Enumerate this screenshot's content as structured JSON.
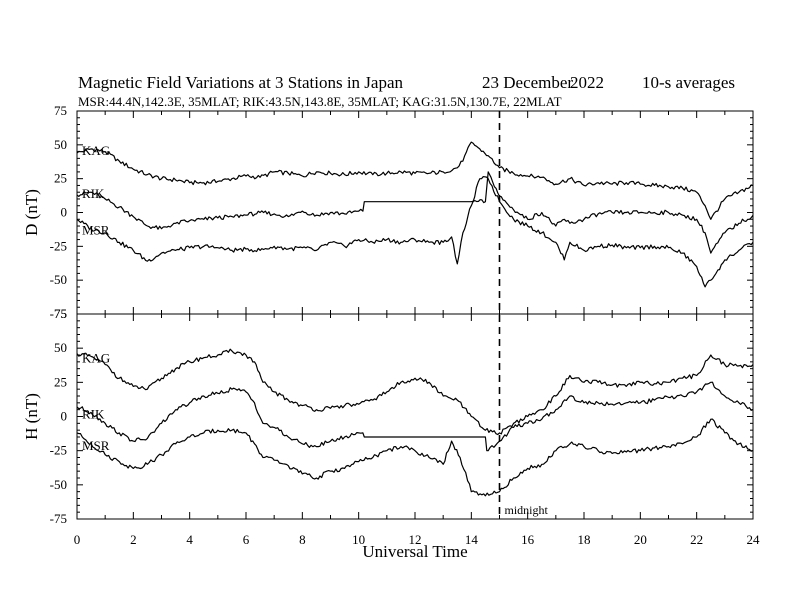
{
  "header": {
    "title_left": "Magnetic Field Variations at 3 Stations in Japan",
    "title_date": "23 December",
    "title_year": "2022",
    "title_right": "10-s averages",
    "subtitle": "MSR:44.4N,142.3E, 35MLAT;  RIK:43.5N,143.8E, 35MLAT;  KAG:31.5N,130.7E, 22MLAT"
  },
  "annotation": {
    "midnight_label": "midnight",
    "midnight_x": 15
  },
  "chart_data": [
    {
      "type": "line",
      "panel": "D",
      "ylabel": "D (nT)",
      "xlabel": "",
      "xlim": [
        0,
        24
      ],
      "ylim": [
        -75,
        75
      ],
      "yticks": [
        -75,
        -50,
        -25,
        0,
        25,
        50,
        75
      ],
      "series": [
        {
          "name": "KAG",
          "x": [
            0,
            0.5,
            1,
            1.5,
            2,
            2.5,
            3,
            3.5,
            4,
            4.5,
            5,
            5.5,
            6,
            6.5,
            7,
            7.5,
            8,
            8.5,
            9,
            9.5,
            10,
            10.5,
            11,
            11.5,
            12,
            12.5,
            13,
            13.5,
            13.7,
            14,
            14.3,
            14.6,
            15,
            15.5,
            16,
            16.5,
            17,
            17.5,
            18,
            18.5,
            19,
            19.5,
            20,
            20.5,
            21,
            21.5,
            22,
            22.3,
            22.5,
            23,
            23.5,
            24
          ],
          "y": [
            44,
            47,
            45,
            38,
            32,
            28,
            25,
            24,
            22,
            22,
            23,
            25,
            27,
            26,
            30,
            29,
            27,
            30,
            29,
            28,
            30,
            28,
            29,
            30,
            29,
            29,
            30,
            33,
            38,
            52,
            47,
            42,
            33,
            29,
            27,
            26,
            21,
            25,
            20,
            22,
            21,
            22,
            21,
            20,
            19,
            18,
            15,
            5,
            -5,
            10,
            15,
            20
          ]
        },
        {
          "name": "RIK",
          "x": [
            0,
            0.5,
            1,
            1.5,
            2,
            2.5,
            3,
            3.5,
            4,
            4.5,
            5,
            5.5,
            6,
            6.5,
            7,
            7.5,
            8,
            8.5,
            9,
            9.5,
            10,
            10.15,
            10.2,
            12,
            14,
            14.5,
            14.6,
            14.7,
            15,
            15.5,
            16,
            16.5,
            17,
            17.3,
            17.5,
            18,
            18.5,
            19,
            19.5,
            20,
            20.5,
            21,
            21.5,
            22,
            22.3,
            22.5,
            23,
            23.5,
            24
          ],
          "y": [
            13,
            15,
            10,
            4,
            -3,
            -10,
            -12,
            -8,
            -6,
            -5,
            -4,
            -3,
            -2,
            0,
            -1,
            -3,
            1,
            -2,
            0,
            -1,
            1,
            1,
            8,
            8,
            8,
            8,
            30,
            26,
            12,
            2,
            -5,
            0,
            -10,
            -5,
            -8,
            -5,
            -1,
            0,
            0,
            0,
            0,
            0,
            -2,
            -5,
            -15,
            -30,
            -15,
            -8,
            -2
          ]
        },
        {
          "name": "MSR",
          "x": [
            0,
            0.5,
            1,
            1.5,
            2,
            2.5,
            3,
            3.5,
            4,
            4.5,
            5,
            5.5,
            6,
            6.5,
            7,
            7.5,
            8,
            8.5,
            9,
            9.5,
            10,
            10.5,
            11,
            11.5,
            12,
            12.5,
            13,
            13.3,
            13.5,
            13.7,
            14,
            14.3,
            14.6,
            15,
            15.5,
            16,
            16.5,
            17,
            17.3,
            17.5,
            18,
            18.5,
            19,
            19.5,
            20,
            20.5,
            21,
            21.5,
            22,
            22.3,
            22.5,
            23,
            23.5,
            24
          ],
          "y": [
            -5,
            -12,
            -15,
            -22,
            -28,
            -36,
            -30,
            -28,
            -26,
            -25,
            -26,
            -28,
            -27,
            -28,
            -25,
            -27,
            -26,
            -28,
            -22,
            -25,
            -20,
            -22,
            -20,
            -22,
            -20,
            -22,
            -22,
            -18,
            -38,
            -15,
            5,
            25,
            25,
            8,
            -5,
            -10,
            -15,
            -22,
            -35,
            -22,
            -28,
            -25,
            -24,
            -26,
            -26,
            -25,
            -26,
            -30,
            -40,
            -55,
            -50,
            -35,
            -28,
            -22
          ]
        }
      ]
    },
    {
      "type": "line",
      "panel": "H",
      "ylabel": "H (nT)",
      "xlabel": "Universal Time",
      "xlim": [
        0,
        24
      ],
      "ylim": [
        -75,
        75
      ],
      "xticks": [
        0,
        2,
        4,
        6,
        8,
        10,
        12,
        14,
        16,
        18,
        20,
        22,
        24
      ],
      "yticks": [
        -75,
        -50,
        -25,
        0,
        25,
        50,
        75
      ],
      "series": [
        {
          "name": "KAG",
          "x": [
            0,
            0.5,
            1,
            1.5,
            2,
            2.5,
            3,
            3.5,
            4,
            4.5,
            5,
            5.5,
            6,
            6.3,
            6.6,
            7,
            7.5,
            8,
            8.5,
            9,
            9.5,
            10,
            10.5,
            11,
            11.5,
            12,
            12.5,
            13,
            13.5,
            14,
            14.5,
            15,
            15.5,
            16,
            16.5,
            17,
            17.5,
            18,
            18.5,
            19,
            19.5,
            20,
            20.5,
            21,
            21.5,
            22,
            22.5,
            23,
            23.5,
            24
          ],
          "y": [
            46,
            44,
            38,
            28,
            22,
            20,
            28,
            35,
            40,
            43,
            45,
            48,
            45,
            40,
            25,
            18,
            12,
            8,
            5,
            6,
            8,
            9,
            12,
            18,
            25,
            28,
            25,
            15,
            12,
            0,
            -10,
            -12,
            -5,
            0,
            5,
            15,
            30,
            25,
            25,
            23,
            22,
            25,
            24,
            25,
            28,
            30,
            45,
            38,
            37,
            38
          ]
        },
        {
          "name": "RIK",
          "x": [
            0,
            0.5,
            1,
            1.5,
            2,
            2.5,
            3,
            3.5,
            4,
            4.5,
            5,
            5.5,
            6,
            6.3,
            6.6,
            7,
            7.5,
            8,
            8.5,
            9,
            9.5,
            10,
            10.15,
            10.2,
            12,
            14.5,
            14.55,
            14.6,
            15,
            15.5,
            16,
            16.5,
            17,
            17.5,
            18,
            18.5,
            19,
            19.5,
            20,
            20.5,
            21,
            21.5,
            22,
            22.5,
            23,
            23.5,
            24
          ],
          "y": [
            7,
            3,
            -5,
            -12,
            -18,
            -16,
            -5,
            5,
            10,
            15,
            17,
            20,
            18,
            10,
            -5,
            -8,
            -15,
            -20,
            -22,
            -18,
            -15,
            -12,
            -12,
            -15,
            -15,
            -15,
            -25,
            -25,
            -18,
            -8,
            -5,
            -2,
            5,
            15,
            10,
            10,
            9,
            10,
            10,
            12,
            14,
            15,
            18,
            25,
            15,
            10,
            5
          ]
        },
        {
          "name": "MSR",
          "x": [
            0,
            0.5,
            1,
            1.5,
            2,
            2.5,
            3,
            3.5,
            4,
            4.5,
            5,
            5.5,
            6,
            6.3,
            6.6,
            7,
            7.5,
            8,
            8.5,
            9,
            9.5,
            10,
            10.5,
            11,
            11.5,
            12,
            12.5,
            13,
            13.3,
            13.6,
            14,
            14.5,
            15,
            15.5,
            16,
            16.5,
            17,
            17.5,
            18,
            18.5,
            19,
            19.5,
            20,
            20.5,
            21,
            21.5,
            22,
            22.5,
            23,
            23.5,
            24
          ],
          "y": [
            -12,
            -20,
            -28,
            -33,
            -38,
            -35,
            -28,
            -20,
            -15,
            -12,
            -10,
            -10,
            -12,
            -20,
            -30,
            -32,
            -36,
            -42,
            -45,
            -40,
            -38,
            -33,
            -30,
            -25,
            -22,
            -25,
            -30,
            -35,
            -18,
            -30,
            -55,
            -58,
            -55,
            -45,
            -38,
            -35,
            -25,
            -20,
            -22,
            -25,
            -27,
            -26,
            -25,
            -23,
            -22,
            -20,
            -15,
            -2,
            -12,
            -20,
            -25
          ]
        }
      ]
    }
  ]
}
